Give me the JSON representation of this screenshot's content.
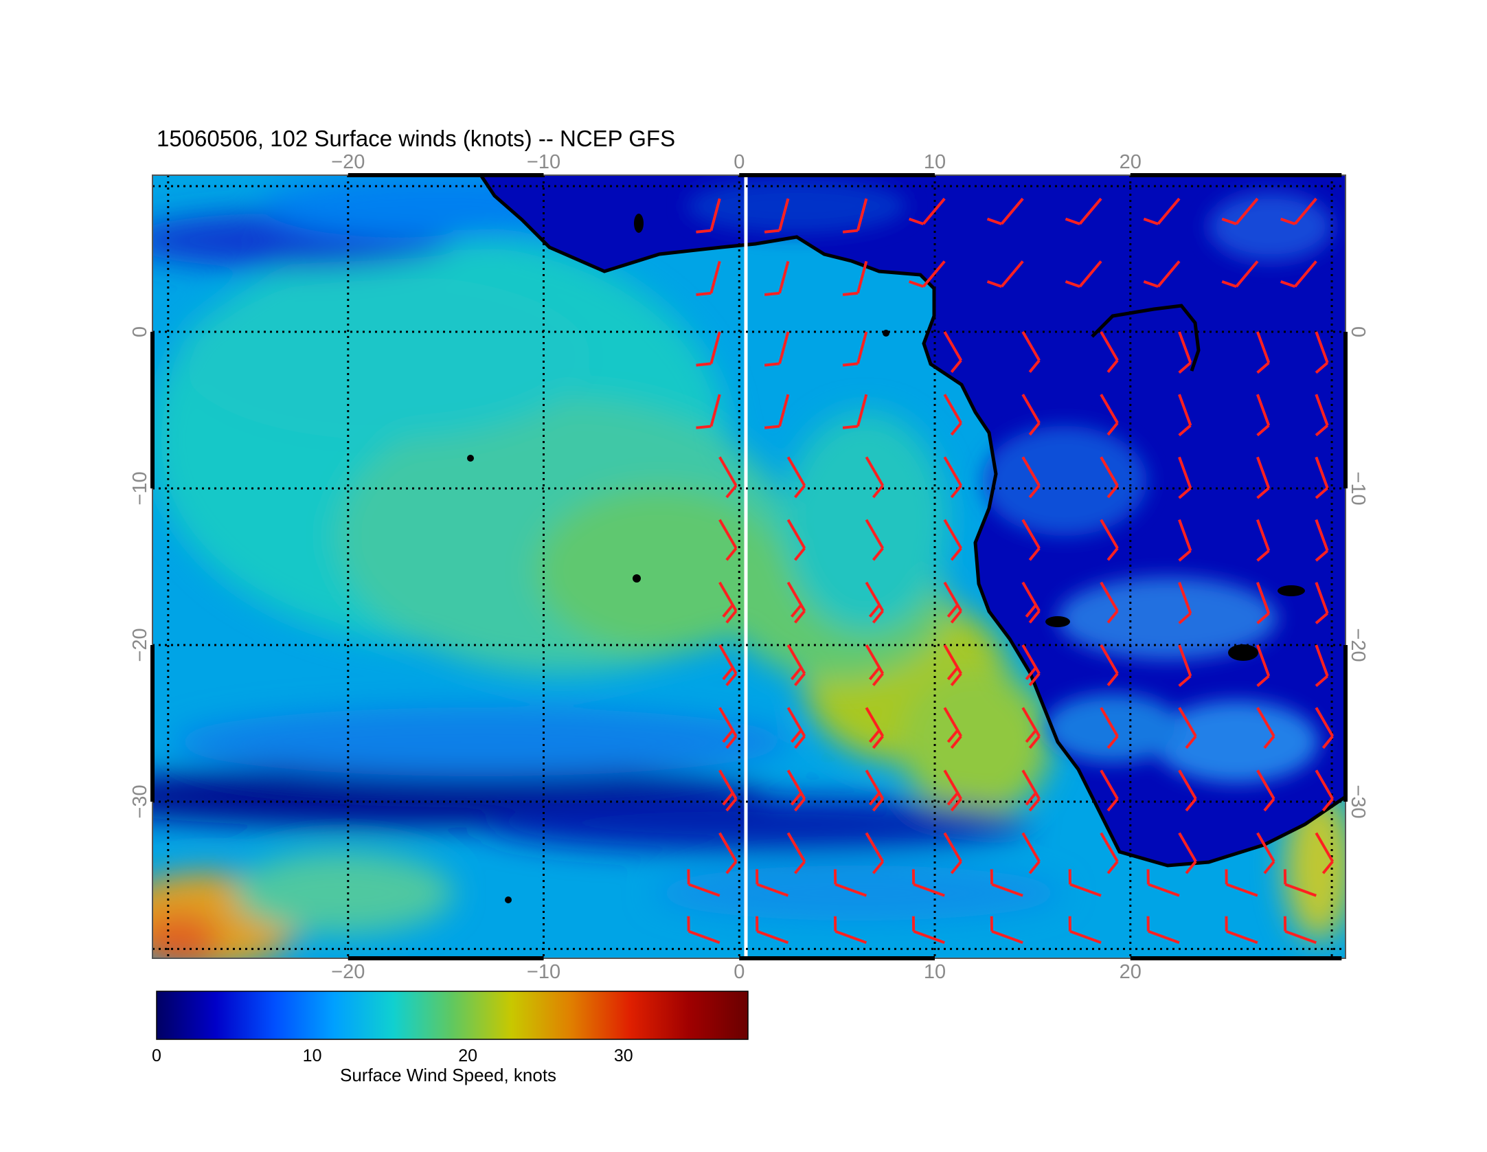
{
  "title": "15060506, 102 Surface winds (knots) -- NCEP GFS",
  "map": {
    "lon_range": [
      -30,
      31
    ],
    "lat_range": [
      10,
      -40
    ],
    "x_ticks": [
      -20,
      -10,
      0,
      10,
      20
    ],
    "x_tick_labels": [
      "−20",
      "−10",
      "0",
      "10",
      "20"
    ],
    "y_ticks": [
      0,
      -10,
      -20,
      -30
    ],
    "y_tick_labels": [
      "0",
      "−10",
      "−20",
      "−30"
    ],
    "gridlines": "dotted",
    "land_outline_color": "#000000",
    "barb_color": "#ff2020",
    "region": "South Atlantic / southern Africa"
  },
  "colorbar": {
    "title": "Surface Wind Speed, knots",
    "range": [
      0,
      38
    ],
    "tick_values": [
      0,
      10,
      20,
      30
    ],
    "tick_labels": [
      "0",
      "10",
      "20",
      "30"
    ],
    "colors": [
      "#000064",
      "#0000c8",
      "#0050ff",
      "#00a0ff",
      "#10d0d0",
      "#60c860",
      "#c8c800",
      "#e08000",
      "#e02000",
      "#a00000",
      "#6a0000"
    ]
  }
}
